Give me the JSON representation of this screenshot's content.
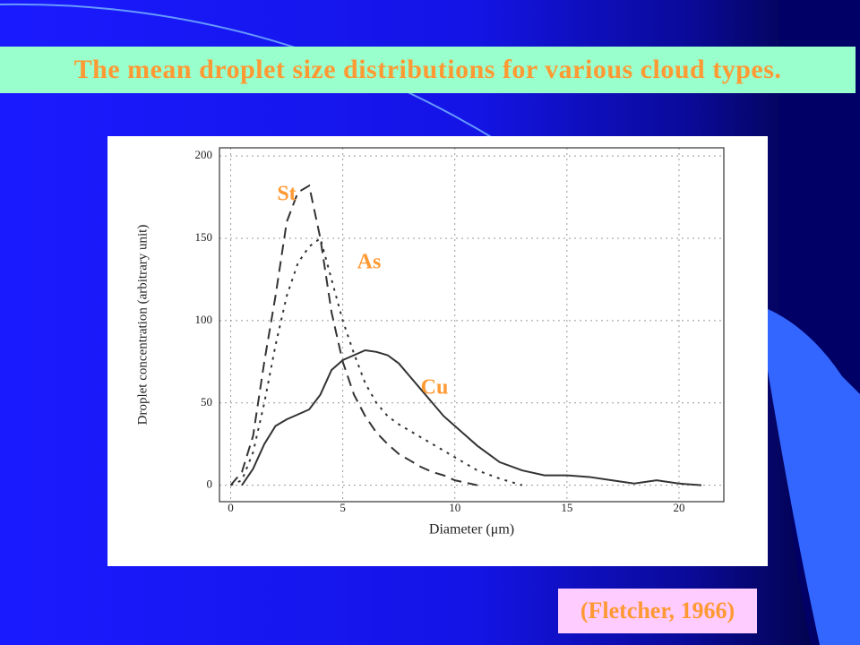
{
  "chart_data": {
    "type": "line",
    "title": "The mean droplet size distributions for various cloud types.",
    "source": "(Fletcher, 1966)",
    "x_label": "Diameter (μm)",
    "y_label": "Droplet concentration (arbitrary unit)",
    "x": [
      0,
      0.5,
      1,
      1.5,
      2,
      2.5,
      3,
      3.5,
      4,
      4.5,
      5,
      5.5,
      6,
      6.5,
      7,
      7.5,
      8,
      8.5,
      9,
      9.5,
      10,
      11,
      12,
      13,
      14,
      15,
      16,
      17,
      18,
      19,
      20,
      21
    ],
    "series": [
      {
        "name": "St",
        "color": "#333333",
        "dash": "12,7",
        "label_color": "#ff9933",
        "values": [
          0,
          8,
          30,
          75,
          115,
          160,
          178,
          182,
          150,
          105,
          75,
          55,
          42,
          32,
          25,
          19,
          15,
          11,
          8,
          6,
          3,
          0,
          null,
          null,
          null,
          null,
          null,
          null,
          null,
          null,
          null,
          null
        ]
      },
      {
        "name": "As",
        "color": "#333333",
        "dash": "3,6",
        "label_color": "#ff9933",
        "values": [
          0,
          3,
          20,
          50,
          85,
          115,
          135,
          145,
          150,
          125,
          100,
          80,
          62,
          50,
          42,
          37,
          33,
          29,
          25,
          21,
          17,
          9,
          4,
          0,
          null,
          null,
          null,
          null,
          null,
          null,
          null,
          null
        ]
      },
      {
        "name": "Cu",
        "color": "#333333",
        "dash": "none",
        "label_color": "#ff9933",
        "values": [
          null,
          0,
          10,
          25,
          36,
          40,
          43,
          46,
          55,
          70,
          76,
          79,
          82,
          81,
          79,
          74,
          66,
          58,
          50,
          42,
          36,
          24,
          14,
          9,
          6,
          6,
          5,
          3,
          1,
          3,
          1,
          0
        ]
      }
    ],
    "xlim": [
      -0.5,
      22
    ],
    "xticks": [
      0,
      5,
      10,
      15,
      20
    ],
    "ylim": [
      -10,
      205
    ],
    "yticks": [
      0,
      50,
      100,
      150,
      200
    ],
    "grid": true
  }
}
